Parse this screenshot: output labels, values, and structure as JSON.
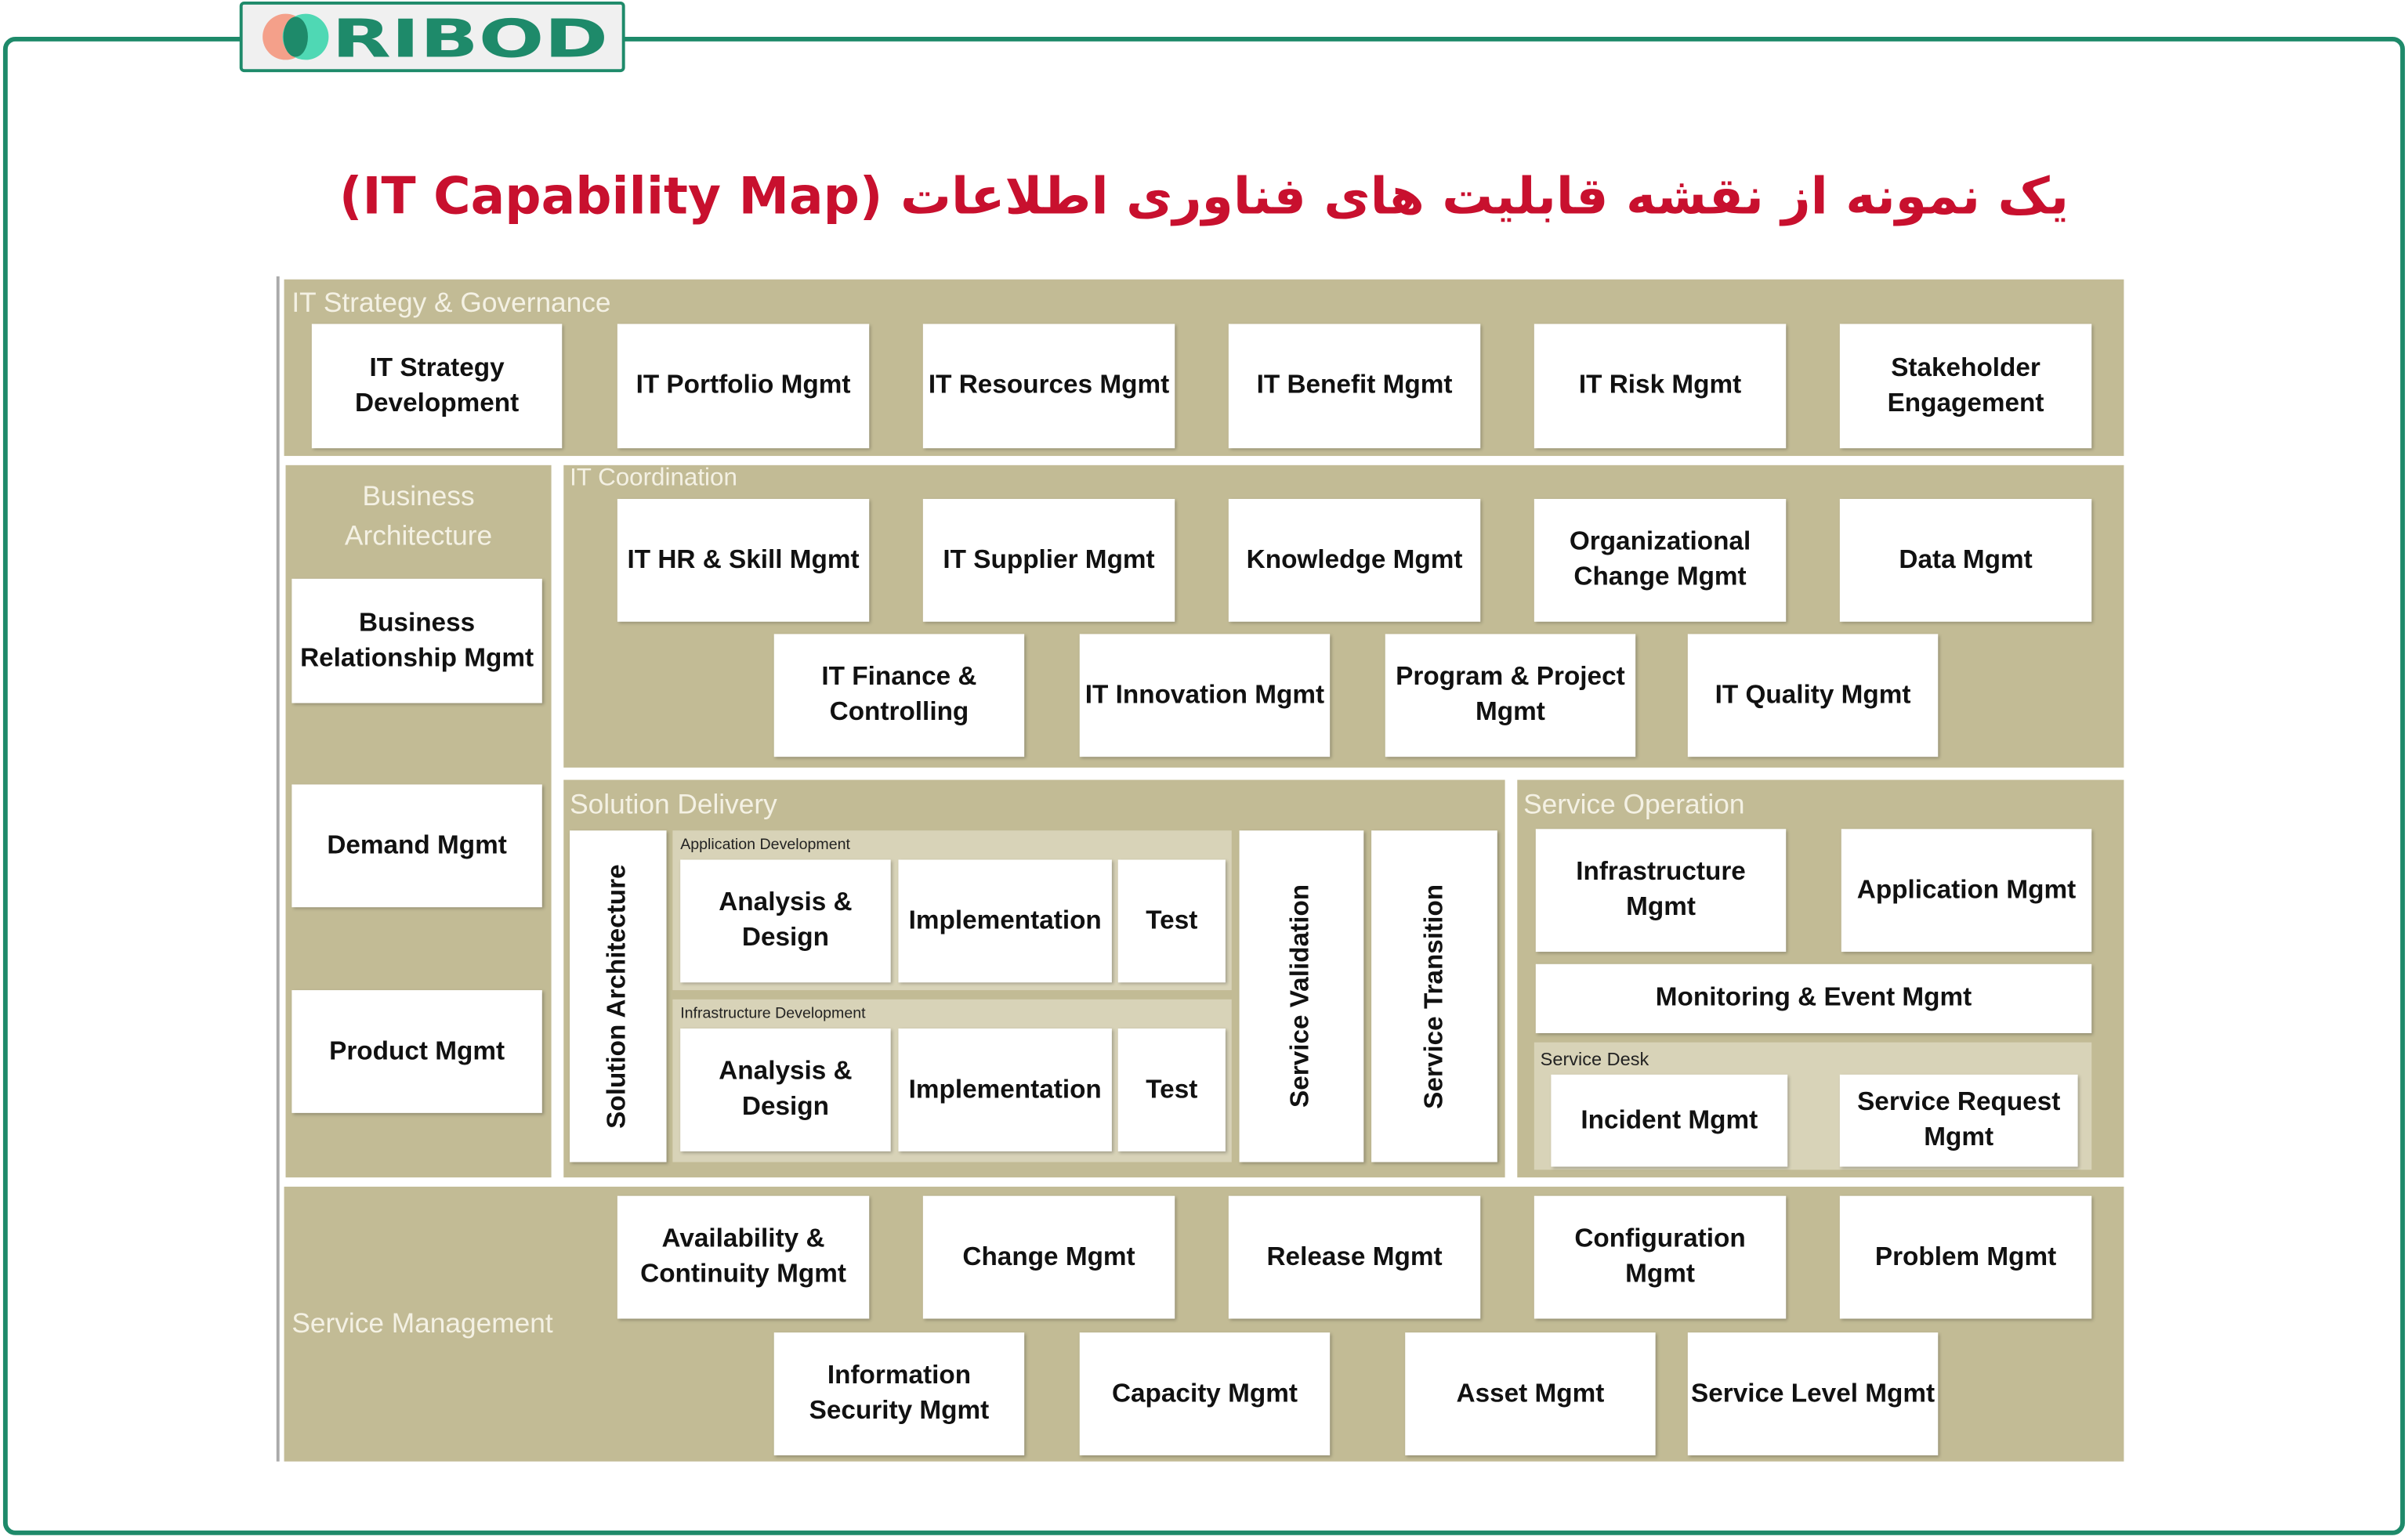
{
  "brand": {
    "logo_text": "RIBOD",
    "colors": {
      "frame": "#1e8a6a",
      "logo_left": "#f4a08a",
      "logo_right": "#4fd8b4",
      "title": "#c8102e",
      "section": "#c2bb95"
    }
  },
  "title": "یک نمونه از نقشه قابلیت های فناوری اطلاعات (IT Capability Map)",
  "sections": {
    "strategy": {
      "label": "IT Strategy & Governance",
      "items": [
        "IT Strategy Development",
        "IT Portfolio Mgmt",
        "IT Resources Mgmt",
        "IT Benefit Mgmt",
        "IT Risk Mgmt",
        "Stakeholder Engagement"
      ]
    },
    "business": {
      "label": "Business Architecture",
      "items": [
        "Business Relationship Mgmt",
        "Demand Mgmt",
        "Product Mgmt"
      ]
    },
    "coordination": {
      "label": "IT Coordination",
      "items": [
        "IT HR & Skill Mgmt",
        "IT Supplier Mgmt",
        "Knowledge Mgmt",
        "Organizational Change Mgmt",
        "Data Mgmt",
        "IT Finance & Controlling",
        "IT Innovation Mgmt",
        "Program & Project Mgmt",
        "IT Quality Mgmt"
      ]
    },
    "delivery": {
      "label": "Solution Delivery",
      "architecture": "Solution Architecture",
      "app_dev": {
        "label": "Application Development",
        "items": [
          "Analysis & Design",
          "Implementation",
          "Test"
        ]
      },
      "infra_dev": {
        "label": "Infrastructure Development",
        "items": [
          "Analysis & Design",
          "Implementation",
          "Test"
        ]
      },
      "validation": "Service Validation",
      "transition": "Service Transition"
    },
    "operation": {
      "label": "Service Operation",
      "items": [
        "Infrastructure Mgmt",
        "Application Mgmt",
        "Monitoring & Event Mgmt"
      ],
      "service_desk": {
        "label": "Service Desk",
        "items": [
          "Incident Mgmt",
          "Service Request Mgmt"
        ]
      }
    },
    "management": {
      "label": "Service Management",
      "items": [
        "Availability & Continuity Mgmt",
        "Change Mgmt",
        "Release Mgmt",
        "Configuration Mgmt",
        "Problem Mgmt",
        "Information Security Mgmt",
        "Capacity Mgmt",
        "Asset Mgmt",
        "Service Level Mgmt"
      ]
    }
  }
}
